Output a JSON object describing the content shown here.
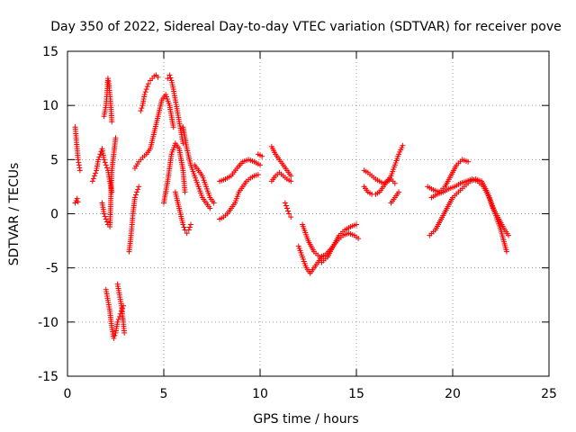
{
  "chart_data": {
    "type": "scatter",
    "title": "Day 350 of 2022, Sidereal Day-to-day VTEC variation (SDTVAR) for receiver pove",
    "xlabel": "GPS time / hours",
    "ylabel": "SDTVAR / TECUs",
    "xlim": [
      0,
      25
    ],
    "ylim": [
      -15,
      15
    ],
    "xticks": [
      0,
      5,
      10,
      15,
      20,
      25
    ],
    "yticks": [
      -15,
      -10,
      -5,
      0,
      5,
      10,
      15
    ],
    "xtick_labels": [
      "0",
      "5",
      "10",
      "15",
      "20",
      "25"
    ],
    "ytick_labels": [
      "-15",
      "-10",
      "-5",
      "0",
      "5",
      "10",
      "15"
    ],
    "grid": true,
    "marker": "+",
    "color": "#ff0000",
    "series": [
      {
        "name": "seg1",
        "x": [
          0.4,
          0.45,
          0.5,
          0.55
        ],
        "y": [
          1.0,
          1.2,
          1.4,
          1.1
        ]
      },
      {
        "name": "seg2",
        "x": [
          0.4,
          0.45,
          0.5,
          0.55,
          0.6,
          0.65
        ],
        "y": [
          8.0,
          7.0,
          6.0,
          5.0,
          4.5,
          4.0
        ]
      },
      {
        "name": "seg3",
        "x": [
          1.3,
          1.4,
          1.5,
          1.6,
          1.7,
          1.8,
          1.9,
          2.0,
          2.1,
          2.2,
          2.3
        ],
        "y": [
          3.0,
          3.5,
          4.0,
          5.0,
          5.5,
          6.0,
          5.0,
          4.5,
          4.0,
          3.0,
          2.0
        ]
      },
      {
        "name": "seg4",
        "x": [
          1.9,
          2.0,
          2.05,
          2.1,
          2.15,
          2.2,
          2.25,
          2.3
        ],
        "y": [
          9.0,
          10.0,
          11.0,
          12.5,
          12.0,
          11.0,
          10.0,
          8.5
        ]
      },
      {
        "name": "seg5",
        "x": [
          1.8,
          1.9,
          2.0,
          2.1,
          2.2,
          2.3,
          2.5
        ],
        "y": [
          1.0,
          0.0,
          -0.5,
          -1.0,
          -1.2,
          4.0,
          7.0
        ]
      },
      {
        "name": "seg6",
        "x": [
          2.0,
          2.1,
          2.2,
          2.3,
          2.4,
          2.5,
          2.6,
          2.7,
          2.8,
          2.9
        ],
        "y": [
          -7.0,
          -8.0,
          -9.0,
          -10.5,
          -11.5,
          -11.0,
          -10.0,
          -9.5,
          -9.0,
          -8.5
        ]
      },
      {
        "name": "seg7",
        "x": [
          2.6,
          2.7,
          2.8,
          2.9,
          2.95
        ],
        "y": [
          -6.5,
          -7.5,
          -8.5,
          -10.0,
          -11.0
        ]
      },
      {
        "name": "seg8",
        "x": [
          3.2,
          3.3,
          3.4,
          3.5,
          3.6,
          3.7
        ],
        "y": [
          -3.5,
          -2.0,
          0.0,
          1.5,
          2.0,
          2.5
        ]
      },
      {
        "name": "seg9",
        "x": [
          3.5,
          3.7,
          3.9,
          4.1,
          4.3,
          4.5,
          4.7,
          4.9,
          5.1,
          5.3,
          5.5
        ],
        "y": [
          4.2,
          4.8,
          5.2,
          5.5,
          6.0,
          7.5,
          9.0,
          10.5,
          11.0,
          10.0,
          8.0
        ]
      },
      {
        "name": "seg10",
        "x": [
          3.8,
          3.9,
          4.0,
          4.1,
          4.2,
          4.3,
          4.4,
          4.5,
          4.6,
          4.7
        ],
        "y": [
          9.5,
          10.0,
          11.0,
          11.5,
          12.0,
          12.3,
          12.5,
          12.7,
          12.8,
          12.6
        ]
      },
      {
        "name": "seg11",
        "x": [
          5.0,
          5.2,
          5.4,
          5.6,
          5.8,
          6.0,
          6.1
        ],
        "y": [
          1.0,
          3.0,
          5.5,
          6.5,
          6.0,
          4.0,
          2.0
        ]
      },
      {
        "name": "seg12",
        "x": [
          5.2,
          5.3,
          5.4,
          5.5,
          5.6,
          5.7,
          5.8,
          5.9,
          6.0
        ],
        "y": [
          12.5,
          12.8,
          12.3,
          11.5,
          10.5,
          9.5,
          8.5,
          7.5,
          6.5
        ]
      },
      {
        "name": "seg13",
        "x": [
          5.6,
          5.8,
          6.0,
          6.1,
          6.2,
          6.3,
          6.4
        ],
        "y": [
          2.0,
          0.5,
          -1.0,
          -1.5,
          -1.8,
          -1.5,
          -1.0
        ]
      },
      {
        "name": "seg14",
        "x": [
          6.0,
          6.2,
          6.4,
          6.6,
          6.8,
          7.0,
          7.2,
          7.4
        ],
        "y": [
          8.0,
          6.0,
          4.5,
          3.5,
          2.5,
          1.5,
          1.0,
          0.5
        ]
      },
      {
        "name": "seg15",
        "x": [
          6.6,
          6.8,
          7.0,
          7.2,
          7.4,
          7.6
        ],
        "y": [
          4.5,
          4.0,
          3.5,
          2.5,
          1.5,
          1.0
        ]
      },
      {
        "name": "seg16",
        "x": [
          7.9,
          8.1,
          8.3,
          8.5,
          8.7,
          8.9,
          9.1,
          9.3,
          9.5,
          9.7,
          9.9
        ],
        "y": [
          -0.5,
          -0.3,
          0.0,
          0.5,
          1.0,
          2.0,
          2.5,
          3.0,
          3.3,
          3.5,
          3.6
        ]
      },
      {
        "name": "seg17",
        "x": [
          7.9,
          8.2,
          8.5,
          8.8,
          9.1,
          9.4,
          9.7,
          10.0
        ],
        "y": [
          3.0,
          3.2,
          3.5,
          4.2,
          4.8,
          5.0,
          4.8,
          4.5
        ]
      },
      {
        "name": "seg18",
        "x": [
          9.9,
          10.1
        ],
        "y": [
          5.5,
          5.3
        ]
      },
      {
        "name": "seg19",
        "x": [
          10.6,
          10.8,
          11.0,
          11.2,
          11.4,
          11.6
        ],
        "y": [
          6.2,
          5.5,
          5.0,
          4.5,
          4.0,
          3.5
        ]
      },
      {
        "name": "seg20",
        "x": [
          10.6,
          10.8,
          11.0,
          11.2,
          11.4,
          11.6
        ],
        "y": [
          3.0,
          3.5,
          3.8,
          3.5,
          3.2,
          3.0
        ]
      },
      {
        "name": "seg21",
        "x": [
          11.3,
          11.4,
          11.5,
          11.6
        ],
        "y": [
          1.0,
          0.5,
          0.0,
          -0.3
        ]
      },
      {
        "name": "seg22",
        "x": [
          12.0,
          12.2,
          12.4,
          12.6,
          12.8,
          13.0,
          13.2
        ],
        "y": [
          -3.0,
          -4.0,
          -5.0,
          -5.5,
          -5.0,
          -4.5,
          -4.0
        ]
      },
      {
        "name": "seg23",
        "x": [
          12.2,
          12.5,
          12.8,
          13.1,
          13.4,
          13.7,
          14.0,
          14.3,
          14.6,
          14.9,
          15.1
        ],
        "y": [
          -1.0,
          -2.5,
          -3.5,
          -4.0,
          -3.8,
          -3.2,
          -2.5,
          -2.0,
          -1.8,
          -2.0,
          -2.3
        ]
      },
      {
        "name": "seg24",
        "x": [
          13.2,
          13.5,
          13.8,
          14.1,
          14.4,
          14.7,
          15.0
        ],
        "y": [
          -4.5,
          -4.0,
          -3.0,
          -2.0,
          -1.5,
          -1.2,
          -1.0
        ]
      },
      {
        "name": "seg25",
        "x": [
          15.4,
          15.6,
          15.8,
          16.0,
          16.2,
          16.4,
          16.6,
          16.8,
          17.0
        ],
        "y": [
          2.5,
          2.0,
          1.8,
          1.8,
          2.0,
          2.5,
          3.0,
          3.2,
          2.8
        ]
      },
      {
        "name": "seg26",
        "x": [
          15.4,
          15.6,
          15.8,
          16.0,
          16.2,
          16.4,
          16.6,
          16.8,
          17.0,
          17.2,
          17.4
        ],
        "y": [
          4.0,
          3.8,
          3.5,
          3.2,
          3.0,
          2.8,
          3.0,
          3.5,
          4.5,
          5.5,
          6.3
        ]
      },
      {
        "name": "seg27",
        "x": [
          16.8,
          17.0,
          17.2
        ],
        "y": [
          1.0,
          1.5,
          2.0
        ]
      },
      {
        "name": "seg28",
        "x": [
          18.7,
          19.0,
          19.3,
          19.6,
          19.9,
          20.2,
          20.5,
          20.8
        ],
        "y": [
          2.5,
          2.2,
          2.0,
          2.5,
          3.5,
          4.5,
          5.0,
          4.8
        ]
      },
      {
        "name": "seg29",
        "x": [
          18.8,
          19.1,
          19.4,
          19.7,
          20.0,
          20.3,
          20.6,
          20.9,
          21.2,
          21.5,
          21.8,
          22.1,
          22.4,
          22.7,
          22.9
        ],
        "y": [
          -2.0,
          -1.5,
          -0.5,
          0.5,
          1.5,
          2.0,
          2.5,
          3.0,
          3.2,
          3.0,
          2.0,
          0.5,
          -0.5,
          -1.5,
          -2.0
        ]
      },
      {
        "name": "seg30",
        "x": [
          18.9,
          19.2,
          19.5,
          19.8,
          20.1,
          20.4,
          20.7,
          21.0,
          21.3,
          21.6,
          21.9,
          22.2,
          22.5,
          22.8
        ],
        "y": [
          1.5,
          1.8,
          2.0,
          2.3,
          2.5,
          2.8,
          3.0,
          3.2,
          3.0,
          2.5,
          1.5,
          0.0,
          -1.5,
          -3.5
        ]
      }
    ]
  }
}
